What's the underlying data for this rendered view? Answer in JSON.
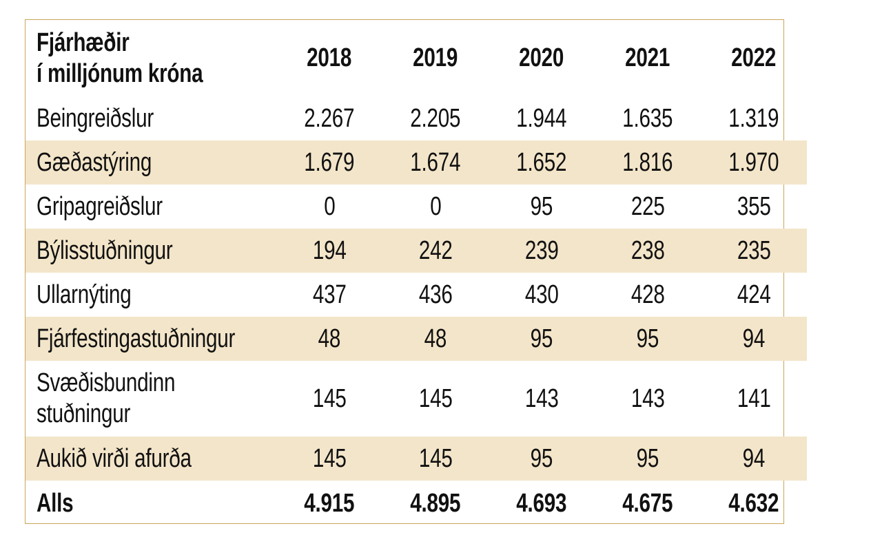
{
  "table": {
    "header": {
      "label_line1": "Fjárhæðir",
      "label_line2": "í milljónum króna",
      "years": [
        "2018",
        "2019",
        "2020",
        "2021",
        "2022"
      ]
    },
    "rows": [
      {
        "label": "Beingreiðslur",
        "values": [
          "2.267",
          "2.205",
          "1.944",
          "1.635",
          "1.319"
        ]
      },
      {
        "label": "Gæðastýring",
        "values": [
          "1.679",
          "1.674",
          "1.652",
          "1.816",
          "1.970"
        ]
      },
      {
        "label": "Gripagreiðslur",
        "values": [
          "0",
          "0",
          "95",
          "225",
          "355"
        ]
      },
      {
        "label": "Býlisstuðningur",
        "values": [
          "194",
          "242",
          "239",
          "238",
          "235"
        ]
      },
      {
        "label": "Ullarnýting",
        "values": [
          "437",
          "436",
          "430",
          "428",
          "424"
        ]
      },
      {
        "label": "Fjárfestingastuðningur",
        "values": [
          "48",
          "48",
          "95",
          "95",
          "94"
        ]
      },
      {
        "label_line1": "Svæðisbundinn",
        "label_line2": "stuðningur",
        "values": [
          "145",
          "145",
          "143",
          "143",
          "141"
        ]
      },
      {
        "label": "Aukið virði afurða",
        "values": [
          "145",
          "145",
          "95",
          "95",
          "94"
        ]
      }
    ],
    "total": {
      "label": "Alls",
      "values": [
        "4.915",
        "4.895",
        "4.693",
        "4.675",
        "4.632"
      ]
    }
  },
  "colors": {
    "border": "#c9a55a",
    "row_shade": "#f3e5c9"
  }
}
